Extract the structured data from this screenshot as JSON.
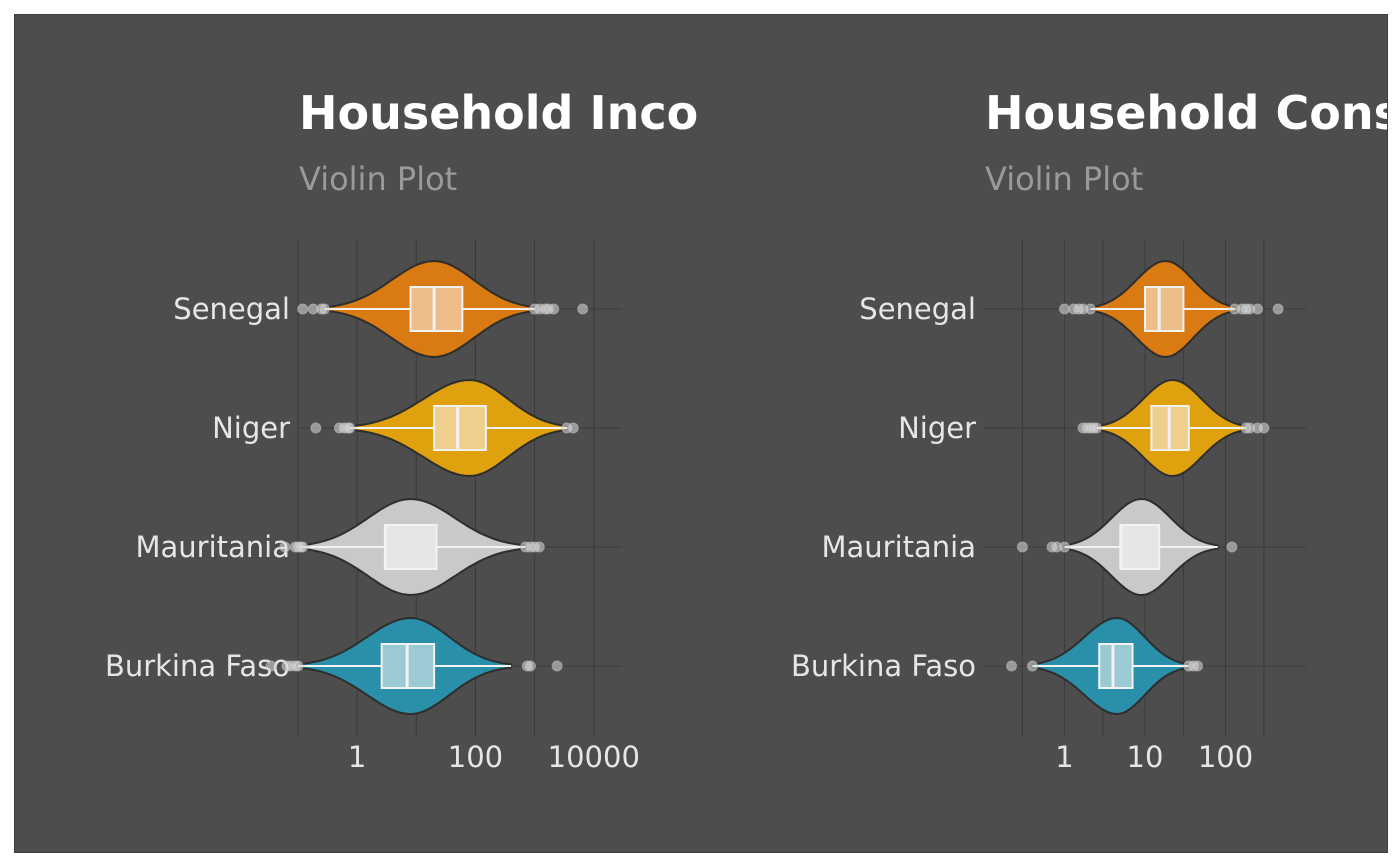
{
  "style": {
    "panel_bg": "#4d4d4d",
    "grid": "#3a3a3a",
    "text": "#e6e6e6",
    "subtitle": "#9a9a9a",
    "outline": "#2e2e2e"
  },
  "chart_data": [
    {
      "type": "violin",
      "title": "Household Income",
      "subtitle": "Violin Plot",
      "x_scale": "log10",
      "xlim": [
        0.1,
        30000
      ],
      "x_ticks": [
        1,
        100,
        10000
      ],
      "x_tick_labels": [
        "1",
        "100",
        "10000"
      ],
      "x_minor_gridlines": [
        0.1,
        10,
        1000
      ],
      "categories": [
        "Senegal",
        "Niger",
        "Mauritania",
        "Burkina Faso"
      ],
      "series": [
        {
          "name": "Senegal",
          "color": "#d97a12",
          "box_fill": "#edbd8a",
          "whisker_low": 0.28,
          "q1": 8,
          "median": 20,
          "q3": 60,
          "whisker_high": 1000,
          "violin_min": 0.28,
          "violin_max": 1100,
          "violin_mode": 20,
          "outliers": [
            0.12,
            0.18,
            0.25,
            0.28,
            1000,
            1200,
            1500,
            1700,
            2100,
            6500
          ]
        },
        {
          "name": "Niger",
          "color": "#e0a10f",
          "box_fill": "#eecf8d",
          "whisker_low": 0.75,
          "q1": 20,
          "median": 50,
          "q3": 150,
          "whisker_high": 3500,
          "violin_min": 0.75,
          "violin_max": 3800,
          "violin_mode": 80,
          "outliers": [
            0.2,
            0.5,
            0.6,
            0.7,
            0.75,
            3500,
            4500
          ]
        },
        {
          "name": "Mauritania",
          "color": "#c8c9cb",
          "box_fill": "#e6e6e7",
          "whisker_low": 0.11,
          "q1": 3,
          "median": 3,
          "q3": 22,
          "whisker_high": 700,
          "violin_min": 0.11,
          "violin_max": 700,
          "violin_mode": 8,
          "outliers": [
            0.06,
            0.09,
            0.1,
            0.11,
            0.12,
            700,
            850,
            1000,
            1200
          ]
        },
        {
          "name": "Burkina Faso",
          "color": "#2a8fa8",
          "box_fill": "#9bc9d4",
          "whisker_low": 0.1,
          "q1": 2.6,
          "median": 7,
          "q3": 20,
          "whisker_high": 400,
          "violin_min": 0.1,
          "violin_max": 400,
          "violin_mode": 8,
          "outliers": [
            0.035,
            0.065,
            0.075,
            0.09,
            0.1,
            750,
            850,
            2400
          ]
        }
      ]
    },
    {
      "type": "violin",
      "title": "Household Consumption",
      "subtitle": "Violin Plot",
      "x_scale": "log10",
      "xlim": [
        0.1,
        1000
      ],
      "x_ticks": [
        1,
        10,
        100
      ],
      "x_tick_labels": [
        "1",
        "10",
        "100"
      ],
      "x_minor_gridlines": [
        0.3,
        3,
        30,
        300
      ],
      "categories": [
        "Senegal",
        "Niger",
        "Mauritania",
        "Burkina Faso"
      ],
      "series": [
        {
          "name": "Senegal",
          "color": "#d97a12",
          "box_fill": "#edbd8a",
          "whisker_low": 2.1,
          "q1": 10,
          "median": 15,
          "q3": 30,
          "whisker_high": 130,
          "violin_min": 2.1,
          "violin_max": 140,
          "violin_mode": 18,
          "outliers": [
            1,
            1.3,
            1.5,
            1.7,
            2.1,
            130,
            160,
            180,
            200,
            250,
            450
          ]
        },
        {
          "name": "Niger",
          "color": "#e0a10f",
          "box_fill": "#eecf8d",
          "whisker_low": 2.5,
          "q1": 12,
          "median": 20,
          "q3": 35,
          "whisker_high": 180,
          "violin_min": 2.5,
          "violin_max": 190,
          "violin_mode": 22,
          "outliers": [
            1.7,
            1.9,
            2.1,
            2.3,
            2.5,
            180,
            200,
            250,
            300
          ]
        },
        {
          "name": "Mauritania",
          "color": "#c8c9cb",
          "box_fill": "#e6e6e7",
          "whisker_low": 1,
          "q1": 5,
          "median": 5,
          "q3": 15,
          "whisker_high": 80,
          "violin_min": 1,
          "violin_max": 80,
          "violin_mode": 9,
          "outliers": [
            0.3,
            0.7,
            0.8,
            1,
            120
          ]
        },
        {
          "name": "Burkina Faso",
          "color": "#2a8fa8",
          "box_fill": "#9bc9d4",
          "whisker_low": 0.4,
          "q1": 2.7,
          "median": 4,
          "q3": 7,
          "whisker_high": 35,
          "violin_min": 0.4,
          "violin_max": 35,
          "violin_mode": 4.5,
          "outliers": [
            0.22,
            0.4,
            35,
            40,
            45
          ]
        }
      ]
    }
  ]
}
